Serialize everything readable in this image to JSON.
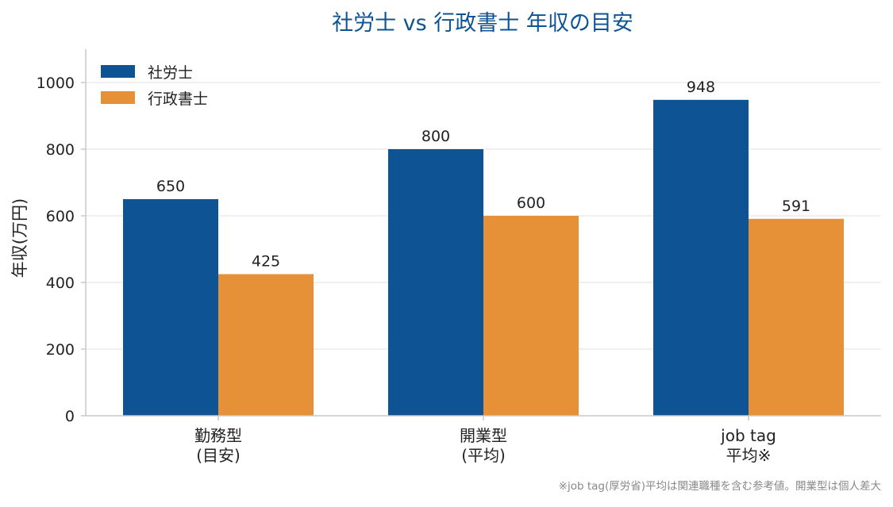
{
  "chart_data": {
    "type": "bar",
    "title": "社労士 vs 行政書士 年収の目安",
    "xlabel": "",
    "ylabel": "年収(万円)",
    "ylim": [
      0,
      1100
    ],
    "yticks": [
      0,
      200,
      400,
      600,
      800,
      1000
    ],
    "grid": "horizontal",
    "legend_position": "top-left",
    "categories": [
      [
        "勤務型",
        "(目安)"
      ],
      [
        "開業型",
        "(平均)"
      ],
      [
        "job tag",
        "平均※"
      ]
    ],
    "series": [
      {
        "name": "社労士",
        "color": "#0e5394",
        "values": [
          650,
          800,
          948
        ]
      },
      {
        "name": "行政書士",
        "color": "#e69138",
        "values": [
          425,
          600,
          591
        ]
      }
    ],
    "footnote": "※job tag(厚労省)平均は関連職種を含む参考値。開業型は個人差大",
    "colors": {
      "title": "#0e5394",
      "axis": "#c8c8c8",
      "grid": "#ebebeb",
      "text": "#222222",
      "footnote": "#888888"
    }
  }
}
